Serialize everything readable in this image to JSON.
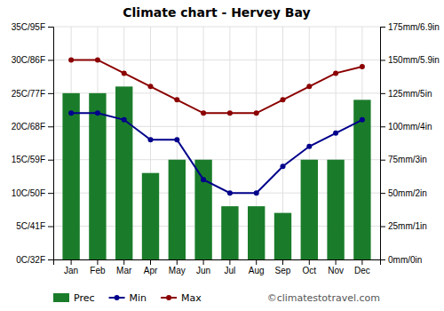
{
  "chart_data": {
    "type": "bar",
    "title": "Climate chart - Hervey Bay",
    "categories": [
      "Jan",
      "Feb",
      "Mar",
      "Apr",
      "May",
      "Jun",
      "Jul",
      "Aug",
      "Sep",
      "Oct",
      "Nov",
      "Dec"
    ],
    "series": [
      {
        "name": "Prec",
        "type": "bar",
        "axis": "y2",
        "color": "#1a7c2a",
        "values": [
          125,
          125,
          130,
          65,
          75,
          75,
          40,
          40,
          35,
          75,
          75,
          120
        ]
      },
      {
        "name": "Min",
        "type": "line",
        "color": "#00008B",
        "marker": "circle",
        "values": [
          22,
          22,
          21,
          18,
          18,
          12,
          10,
          10,
          14,
          17,
          19,
          21
        ]
      },
      {
        "name": "Max",
        "type": "line",
        "color": "#8B0000",
        "marker": "circle",
        "values": [
          30,
          30,
          28,
          26,
          24,
          22,
          22,
          22,
          24,
          26,
          28,
          29
        ]
      }
    ],
    "ylim": [
      0,
      35
    ],
    "yticks": [
      {
        "value": 0,
        "label": "0C/32F"
      },
      {
        "value": 5,
        "label": "5C/41F"
      },
      {
        "value": 10,
        "label": "10C/50F"
      },
      {
        "value": 15,
        "label": "15C/59F"
      },
      {
        "value": 20,
        "label": "20C/68F"
      },
      {
        "value": 25,
        "label": "25C/77F"
      },
      {
        "value": 30,
        "label": "30C/86F"
      },
      {
        "value": 35,
        "label": "35C/95F"
      }
    ],
    "y2lim": [
      0,
      175
    ],
    "y2ticks": [
      {
        "value": 0,
        "label": "0mm/0in"
      },
      {
        "value": 25,
        "label": "25mm/1in"
      },
      {
        "value": 50,
        "label": "50mm/2in"
      },
      {
        "value": 75,
        "label": "75mm/3in"
      },
      {
        "value": 100,
        "label": "100mm/4in"
      },
      {
        "value": 125,
        "label": "125mm/5in"
      },
      {
        "value": 150,
        "label": "150mm/5.9in"
      },
      {
        "value": 175,
        "label": "175mm/6.9in"
      }
    ],
    "grid": true,
    "legend": "bottom",
    "annotations": [
      "©climatestotravel.com"
    ]
  }
}
